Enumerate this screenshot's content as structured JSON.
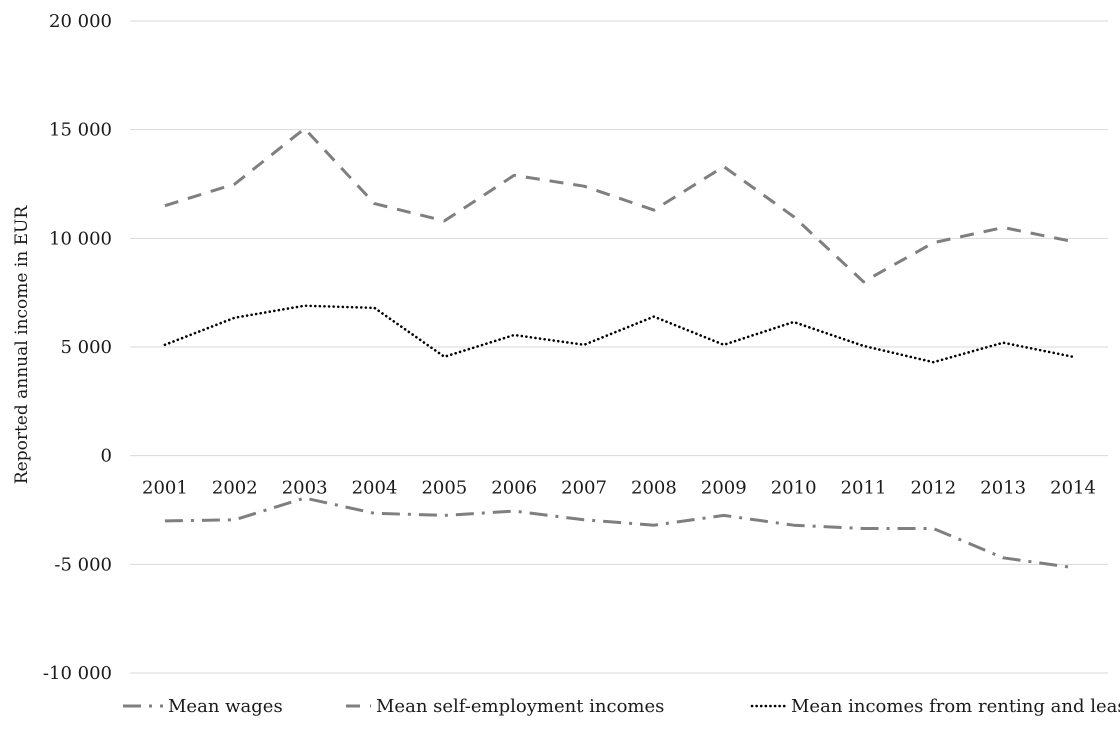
{
  "chart_data": {
    "type": "line",
    "title": "",
    "xlabel": "",
    "ylabel": "Reported annual income in EUR",
    "categories": [
      "2001",
      "2002",
      "2003",
      "2004",
      "2005",
      "2006",
      "2007",
      "2008",
      "2009",
      "2010",
      "2011",
      "2012",
      "2013",
      "2014"
    ],
    "ylim": [
      -10000,
      20000
    ],
    "y_ticks": [
      20000,
      15000,
      10000,
      5000,
      0,
      -5000,
      -10000
    ],
    "y_tick_labels": [
      "20 000",
      "15 000",
      "10 000",
      "5 000",
      "0",
      "-5 000",
      "-10 000"
    ],
    "grid": true,
    "legend_position": "bottom",
    "series": [
      {
        "name": "Mean wages",
        "style": "dash-dot",
        "color": "#7f7f7f",
        "values": [
          -3000,
          -2950,
          -1950,
          -2650,
          -2750,
          -2550,
          -2950,
          -3200,
          -2750,
          -3200,
          -3350,
          -3350,
          -4700,
          -5150
        ]
      },
      {
        "name": "Mean self-employment incomes",
        "style": "dashed",
        "color": "#7f7f7f",
        "values": [
          11500,
          12500,
          15050,
          11600,
          10800,
          12900,
          12400,
          11300,
          13300,
          11000,
          8000,
          9800,
          10500,
          9850
        ]
      },
      {
        "name": "Mean incomes from renting and leasing",
        "style": "dotted",
        "color": "#000000",
        "values": [
          5100,
          6350,
          6900,
          6800,
          4550,
          5550,
          5100,
          6400,
          5100,
          6150,
          5050,
          4300,
          5200,
          4550
        ]
      }
    ]
  }
}
